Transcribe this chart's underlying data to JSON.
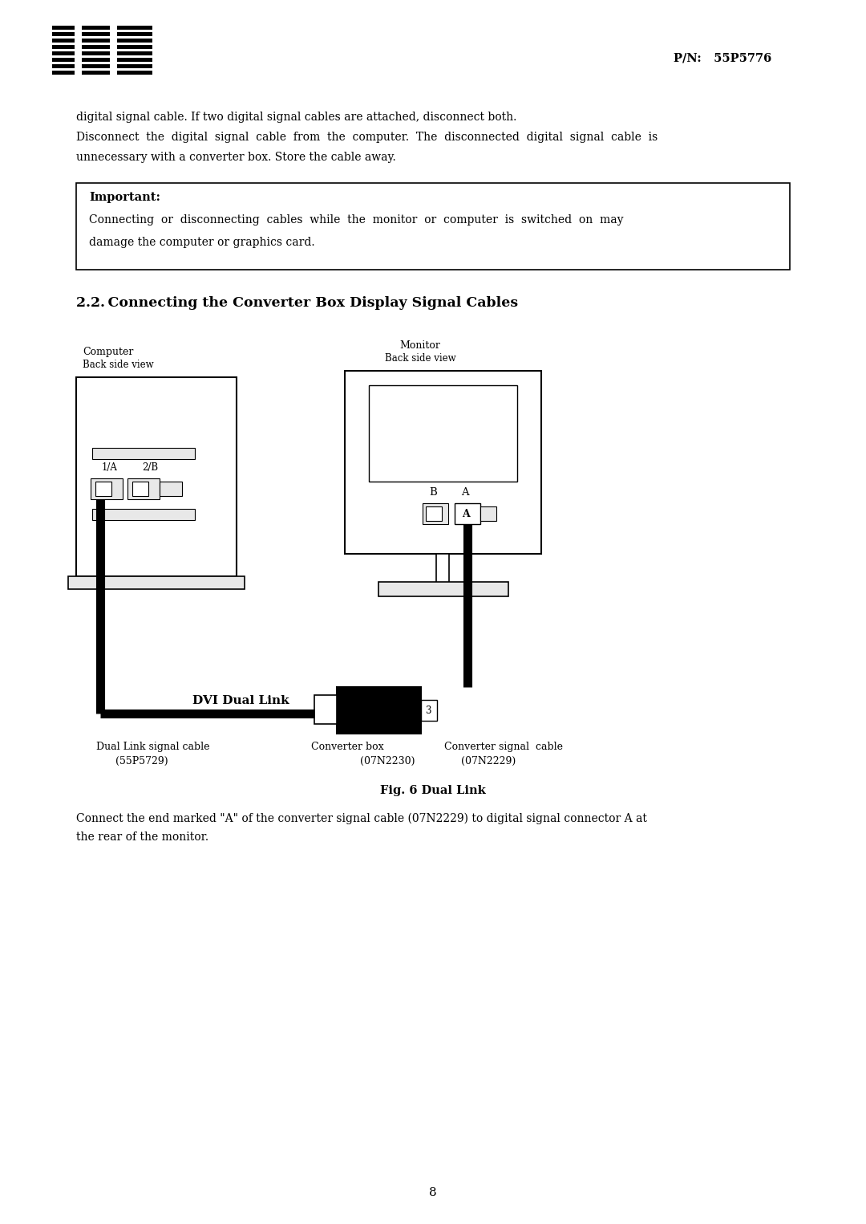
{
  "pn_text": "P/N:   55P5776",
  "para1": "digital signal cable. If two digital signal cables are attached, disconnect both.",
  "para2_line1": "Disconnect  the  digital  signal  cable  from  the  computer.  The  disconnected  digital  signal  cable  is",
  "para2_line2": "unnecessary with a converter box. Store the cable away.",
  "important_label": "Important:",
  "important_text_line1": "Connecting  or  disconnecting  cables  while  the  monitor  or  computer  is  switched  on  may",
  "important_text_line2": "damage the computer or graphics card.",
  "section_title": "2.2. Connecting the Converter Box Display Signal Cables",
  "fig_caption": "Fig. 6 Dual Link",
  "connect_text": "Connect the end marked \"A\" of the converter signal cable (07N2229) to digital signal connector A at",
  "connect_text2": "the rear of the monitor.",
  "page_num": "8",
  "bg_color": "#ffffff",
  "text_color": "#000000"
}
